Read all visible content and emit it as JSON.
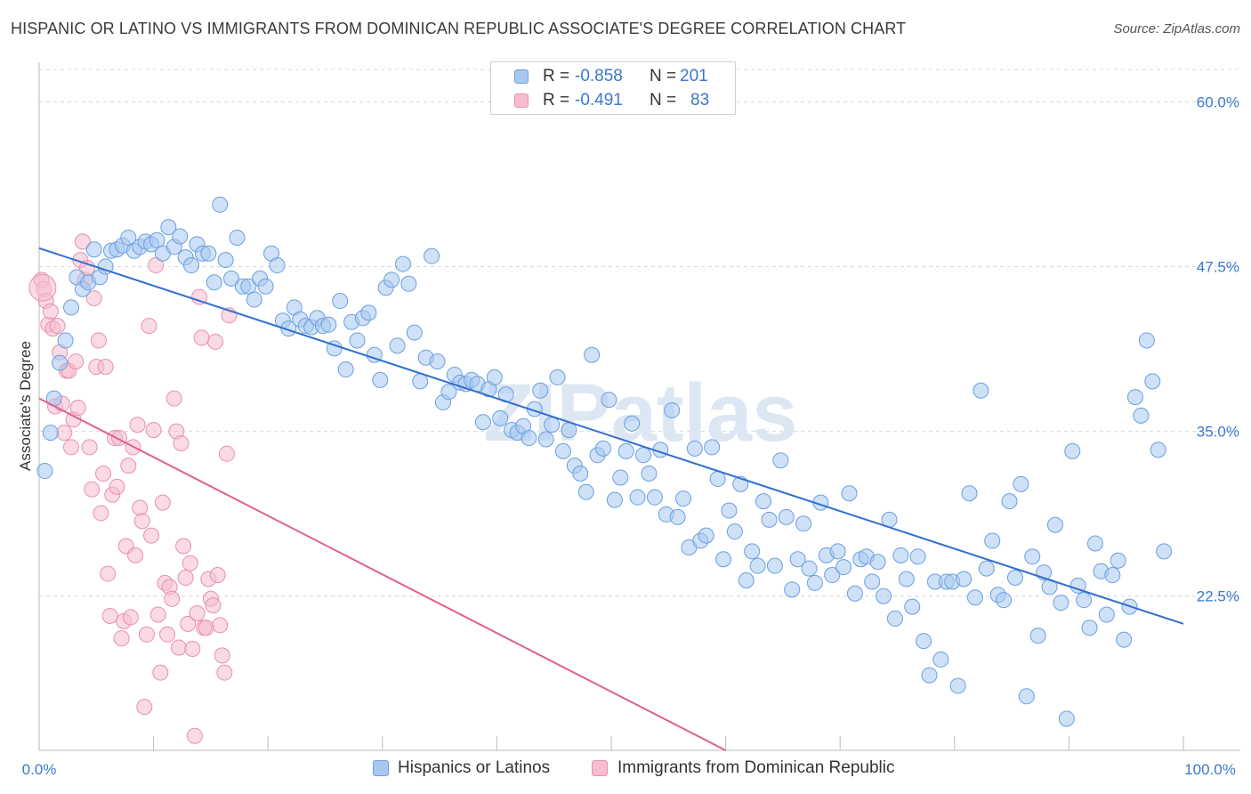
{
  "title": "HISPANIC OR LATINO VS IMMIGRANTS FROM DOMINICAN REPUBLIC ASSOCIATE'S DEGREE CORRELATION CHART",
  "source": "Source: ZipAtlas.com",
  "watermark": "ZIPatlas",
  "legend_top": {
    "rows": [
      {
        "r_label": "R =",
        "r_value": "-0.858",
        "n_label": "N =",
        "n_value": "201"
      },
      {
        "r_label": "R =",
        "r_value": "-0.491",
        "n_label": "N =",
        "n_value": "83"
      }
    ]
  },
  "legend_bottom": [
    "Hispanics or Latinos",
    "Immigrants from Dominican Republic"
  ],
  "colors": {
    "blue_fill": "#a8c8f0",
    "blue_stroke": "#6a9fe0",
    "blue_line": "#2f6fd0",
    "pink_fill": "#f6bcd0",
    "pink_stroke": "#e890ad",
    "pink_line": "#e06090",
    "accent_text": "#3a78cf",
    "grid": "#d8d8d8"
  },
  "chart_data": {
    "type": "scatter",
    "title": "HISPANIC OR LATINO VS IMMIGRANTS FROM DOMINICAN REPUBLIC ASSOCIATE'S DEGREE CORRELATION CHART",
    "xlabel": "",
    "ylabel": "Associate's Degree",
    "xlim": [
      0,
      100
    ],
    "ylim": [
      10.8,
      63
    ],
    "x_tick_labels": [
      "0.0%",
      "100.0%"
    ],
    "y_ticks": [
      22.5,
      35.0,
      47.5,
      60.0
    ],
    "y_tick_labels": [
      "22.5%",
      "35.0%",
      "47.5%",
      "60.0%"
    ],
    "grid": true,
    "series": [
      {
        "name": "Hispanics or Latinos",
        "color": "blue",
        "R": -0.858,
        "N": 201,
        "trend": {
          "x": [
            0,
            100
          ],
          "y": [
            48.9,
            20.4
          ]
        },
        "points": [
          [
            0.5,
            32
          ],
          [
            1,
            34.9
          ],
          [
            1.3,
            37.5
          ],
          [
            1.8,
            40.2
          ],
          [
            2.3,
            41.9
          ],
          [
            2.8,
            44.4
          ],
          [
            3.3,
            46.7
          ],
          [
            3.8,
            45.8
          ],
          [
            4.3,
            46.3
          ],
          [
            4.8,
            48.8
          ],
          [
            5.3,
            46.7
          ],
          [
            5.8,
            47.5
          ],
          [
            6.3,
            48.7
          ],
          [
            6.8,
            48.8
          ],
          [
            7.3,
            49.1
          ],
          [
            7.8,
            49.7
          ],
          [
            8.3,
            48.7
          ],
          [
            8.8,
            49
          ],
          [
            9.3,
            49.4
          ],
          [
            9.8,
            49.2
          ],
          [
            10.3,
            49.5
          ],
          [
            10.8,
            48.5
          ],
          [
            11.3,
            50.5
          ],
          [
            11.8,
            49
          ],
          [
            12.3,
            49.8
          ],
          [
            12.8,
            48.2
          ],
          [
            13.3,
            47.6
          ],
          [
            13.8,
            49.2
          ],
          [
            14.3,
            48.5
          ],
          [
            14.8,
            48.5
          ],
          [
            15.3,
            46.3
          ],
          [
            15.8,
            52.2
          ],
          [
            16.3,
            48
          ],
          [
            16.8,
            46.6
          ],
          [
            17.3,
            49.7
          ],
          [
            17.8,
            46
          ],
          [
            18.3,
            46
          ],
          [
            18.8,
            45
          ],
          [
            19.3,
            46.6
          ],
          [
            19.8,
            46
          ],
          [
            20.3,
            48.5
          ],
          [
            20.8,
            47.6
          ],
          [
            21.3,
            43.4
          ],
          [
            21.8,
            42.8
          ],
          [
            22.3,
            44.4
          ],
          [
            22.8,
            43.5
          ],
          [
            23.3,
            43
          ],
          [
            23.8,
            42.9
          ],
          [
            24.3,
            43.6
          ],
          [
            24.8,
            43
          ],
          [
            25.3,
            43.1
          ],
          [
            25.8,
            41.3
          ],
          [
            26.3,
            44.9
          ],
          [
            26.8,
            39.7
          ],
          [
            27.3,
            43.3
          ],
          [
            27.8,
            41.9
          ],
          [
            28.3,
            43.6
          ],
          [
            28.8,
            44
          ],
          [
            29.3,
            40.8
          ],
          [
            29.8,
            38.9
          ],
          [
            30.3,
            45.9
          ],
          [
            30.8,
            46.5
          ],
          [
            31.3,
            41.5
          ],
          [
            31.8,
            47.7
          ],
          [
            32.3,
            46.2
          ],
          [
            32.8,
            42.5
          ],
          [
            33.3,
            38.8
          ],
          [
            33.8,
            40.6
          ],
          [
            34.3,
            48.3
          ],
          [
            34.8,
            40.3
          ],
          [
            35.3,
            37.2
          ],
          [
            35.8,
            38
          ],
          [
            36.3,
            39.3
          ],
          [
            36.8,
            38.7
          ],
          [
            37.3,
            38.6
          ],
          [
            37.8,
            38.9
          ],
          [
            38.3,
            38.6
          ],
          [
            38.8,
            35.7
          ],
          [
            39.3,
            38.2
          ],
          [
            39.8,
            39.1
          ],
          [
            40.3,
            36
          ],
          [
            40.8,
            37.8
          ],
          [
            41.3,
            35.1
          ],
          [
            41.8,
            34.9
          ],
          [
            42.3,
            35.4
          ],
          [
            42.8,
            34.5
          ],
          [
            43.3,
            36.7
          ],
          [
            43.8,
            38.1
          ],
          [
            44.3,
            34.4
          ],
          [
            44.8,
            35.5
          ],
          [
            45.3,
            39.1
          ],
          [
            45.8,
            33.5
          ],
          [
            46.3,
            35.1
          ],
          [
            46.8,
            32.4
          ],
          [
            47.3,
            31.8
          ],
          [
            47.8,
            30.4
          ],
          [
            48.3,
            40.8
          ],
          [
            48.8,
            33.2
          ],
          [
            49.3,
            33.7
          ],
          [
            49.8,
            37.4
          ],
          [
            50.3,
            29.8
          ],
          [
            50.8,
            31.5
          ],
          [
            51.3,
            33.5
          ],
          [
            51.8,
            35.6
          ],
          [
            52.3,
            30
          ],
          [
            52.8,
            33.2
          ],
          [
            53.3,
            31.8
          ],
          [
            53.8,
            30
          ],
          [
            54.3,
            33.6
          ],
          [
            54.8,
            28.7
          ],
          [
            55.3,
            36.6
          ],
          [
            55.8,
            28.5
          ],
          [
            56.3,
            29.9
          ],
          [
            56.8,
            26.2
          ],
          [
            57.3,
            33.7
          ],
          [
            57.8,
            26.7
          ],
          [
            58.3,
            27.1
          ],
          [
            58.8,
            33.8
          ],
          [
            59.3,
            31.4
          ],
          [
            59.8,
            25.3
          ],
          [
            60.3,
            29
          ],
          [
            60.8,
            27.4
          ],
          [
            61.3,
            31
          ],
          [
            61.8,
            23.7
          ],
          [
            62.3,
            25.9
          ],
          [
            62.8,
            24.8
          ],
          [
            63.3,
            29.7
          ],
          [
            63.8,
            28.3
          ],
          [
            64.3,
            24.8
          ],
          [
            64.8,
            32.8
          ],
          [
            65.3,
            28.5
          ],
          [
            65.8,
            23
          ],
          [
            66.3,
            25.3
          ],
          [
            66.8,
            28
          ],
          [
            67.3,
            24.6
          ],
          [
            67.8,
            23.5
          ],
          [
            68.3,
            29.6
          ],
          [
            68.8,
            25.6
          ],
          [
            69.3,
            24.1
          ],
          [
            69.8,
            25.9
          ],
          [
            70.3,
            24.7
          ],
          [
            70.8,
            30.3
          ],
          [
            71.3,
            22.7
          ],
          [
            71.8,
            25.3
          ],
          [
            72.3,
            25.5
          ],
          [
            72.8,
            23.6
          ],
          [
            73.3,
            25.1
          ],
          [
            73.8,
            22.5
          ],
          [
            74.3,
            28.3
          ],
          [
            74.8,
            20.8
          ],
          [
            75.3,
            25.6
          ],
          [
            75.8,
            23.8
          ],
          [
            76.3,
            21.7
          ],
          [
            76.8,
            25.5
          ],
          [
            77.3,
            19.1
          ],
          [
            77.8,
            16.5
          ],
          [
            78.3,
            23.6
          ],
          [
            78.8,
            17.7
          ],
          [
            79.3,
            23.6
          ],
          [
            79.8,
            23.6
          ],
          [
            80.3,
            15.7
          ],
          [
            80.8,
            23.8
          ],
          [
            81.3,
            30.3
          ],
          [
            81.8,
            22.4
          ],
          [
            82.3,
            38.1
          ],
          [
            82.8,
            24.6
          ],
          [
            83.3,
            26.7
          ],
          [
            83.8,
            22.6
          ],
          [
            84.3,
            22.2
          ],
          [
            84.8,
            29.7
          ],
          [
            85.3,
            23.9
          ],
          [
            85.8,
            31
          ],
          [
            86.3,
            14.9
          ],
          [
            86.8,
            25.5
          ],
          [
            87.3,
            19.5
          ],
          [
            87.8,
            24.3
          ],
          [
            88.3,
            23.2
          ],
          [
            88.8,
            27.9
          ],
          [
            89.3,
            22
          ],
          [
            89.8,
            13.2
          ],
          [
            90.3,
            33.5
          ],
          [
            90.8,
            23.3
          ],
          [
            91.3,
            22.2
          ],
          [
            91.8,
            20.1
          ],
          [
            92.3,
            26.5
          ],
          [
            92.8,
            24.4
          ],
          [
            93.3,
            21.1
          ],
          [
            93.8,
            24.1
          ],
          [
            94.3,
            25.2
          ],
          [
            94.8,
            19.2
          ],
          [
            95.3,
            21.7
          ],
          [
            95.8,
            37.6
          ],
          [
            96.3,
            36.2
          ],
          [
            96.8,
            41.9
          ],
          [
            97.3,
            38.8
          ],
          [
            97.8,
            33.6
          ],
          [
            98.3,
            25.9
          ]
        ]
      },
      {
        "name": "Immigrants from Dominican Republic",
        "color": "pink",
        "R": -0.491,
        "N": 83,
        "trend": {
          "x": [
            0,
            60
          ],
          "y": [
            37.5,
            10.8
          ]
        },
        "points": [
          [
            0.2,
            46.5
          ],
          [
            0.4,
            45.8
          ],
          [
            0.6,
            44.9
          ],
          [
            0.8,
            43.1
          ],
          [
            1,
            44.1
          ],
          [
            1.2,
            42.8
          ],
          [
            1.4,
            36.9
          ],
          [
            1.6,
            43
          ],
          [
            1.8,
            41
          ],
          [
            2,
            37.1
          ],
          [
            2.2,
            34.9
          ],
          [
            2.4,
            39.6
          ],
          [
            2.6,
            39.6
          ],
          [
            2.8,
            33.8
          ],
          [
            3,
            35.9
          ],
          [
            3.2,
            40.3
          ],
          [
            3.4,
            36.8
          ],
          [
            3.6,
            48
          ],
          [
            3.8,
            49.4
          ],
          [
            4,
            46.5
          ],
          [
            4.2,
            47.4
          ],
          [
            4.4,
            33.8
          ],
          [
            4.6,
            30.6
          ],
          [
            4.8,
            45.1
          ],
          [
            5,
            39.9
          ],
          [
            5.2,
            41.9
          ],
          [
            5.4,
            28.8
          ],
          [
            5.6,
            31.8
          ],
          [
            5.8,
            39.9
          ],
          [
            6,
            24.2
          ],
          [
            6.2,
            21
          ],
          [
            6.4,
            30.2
          ],
          [
            6.6,
            34.5
          ],
          [
            6.8,
            30.8
          ],
          [
            7,
            34.5
          ],
          [
            7.2,
            19.3
          ],
          [
            7.4,
            20.6
          ],
          [
            7.6,
            26.3
          ],
          [
            7.8,
            32.4
          ],
          [
            8,
            20.9
          ],
          [
            8.2,
            33.8
          ],
          [
            8.4,
            25.6
          ],
          [
            8.6,
            35.5
          ],
          [
            8.8,
            29.2
          ],
          [
            9,
            28.2
          ],
          [
            9.2,
            14.1
          ],
          [
            9.4,
            19.6
          ],
          [
            9.6,
            43
          ],
          [
            9.8,
            27.1
          ],
          [
            10,
            35.1
          ],
          [
            10.2,
            47.6
          ],
          [
            10.4,
            21.1
          ],
          [
            10.6,
            16.7
          ],
          [
            10.8,
            29.6
          ],
          [
            11,
            23.5
          ],
          [
            11.2,
            19.6
          ],
          [
            11.4,
            23.2
          ],
          [
            11.6,
            22.3
          ],
          [
            11.8,
            37.5
          ],
          [
            12,
            35
          ],
          [
            12.2,
            18.6
          ],
          [
            12.4,
            34.1
          ],
          [
            12.6,
            26.3
          ],
          [
            12.8,
            23.9
          ],
          [
            13,
            20.4
          ],
          [
            13.2,
            25
          ],
          [
            13.4,
            18.5
          ],
          [
            13.6,
            11.9
          ],
          [
            13.8,
            21.2
          ],
          [
            14,
            45.2
          ],
          [
            14.2,
            42.1
          ],
          [
            14.4,
            20.1
          ],
          [
            14.6,
            20.1
          ],
          [
            14.8,
            23.8
          ],
          [
            15,
            22.3
          ],
          [
            15.2,
            21.8
          ],
          [
            15.4,
            41.8
          ],
          [
            15.6,
            24.1
          ],
          [
            15.8,
            20.3
          ],
          [
            16,
            18
          ],
          [
            16.2,
            16.7
          ],
          [
            16.4,
            33.3
          ],
          [
            16.6,
            43.8
          ]
        ]
      }
    ]
  }
}
